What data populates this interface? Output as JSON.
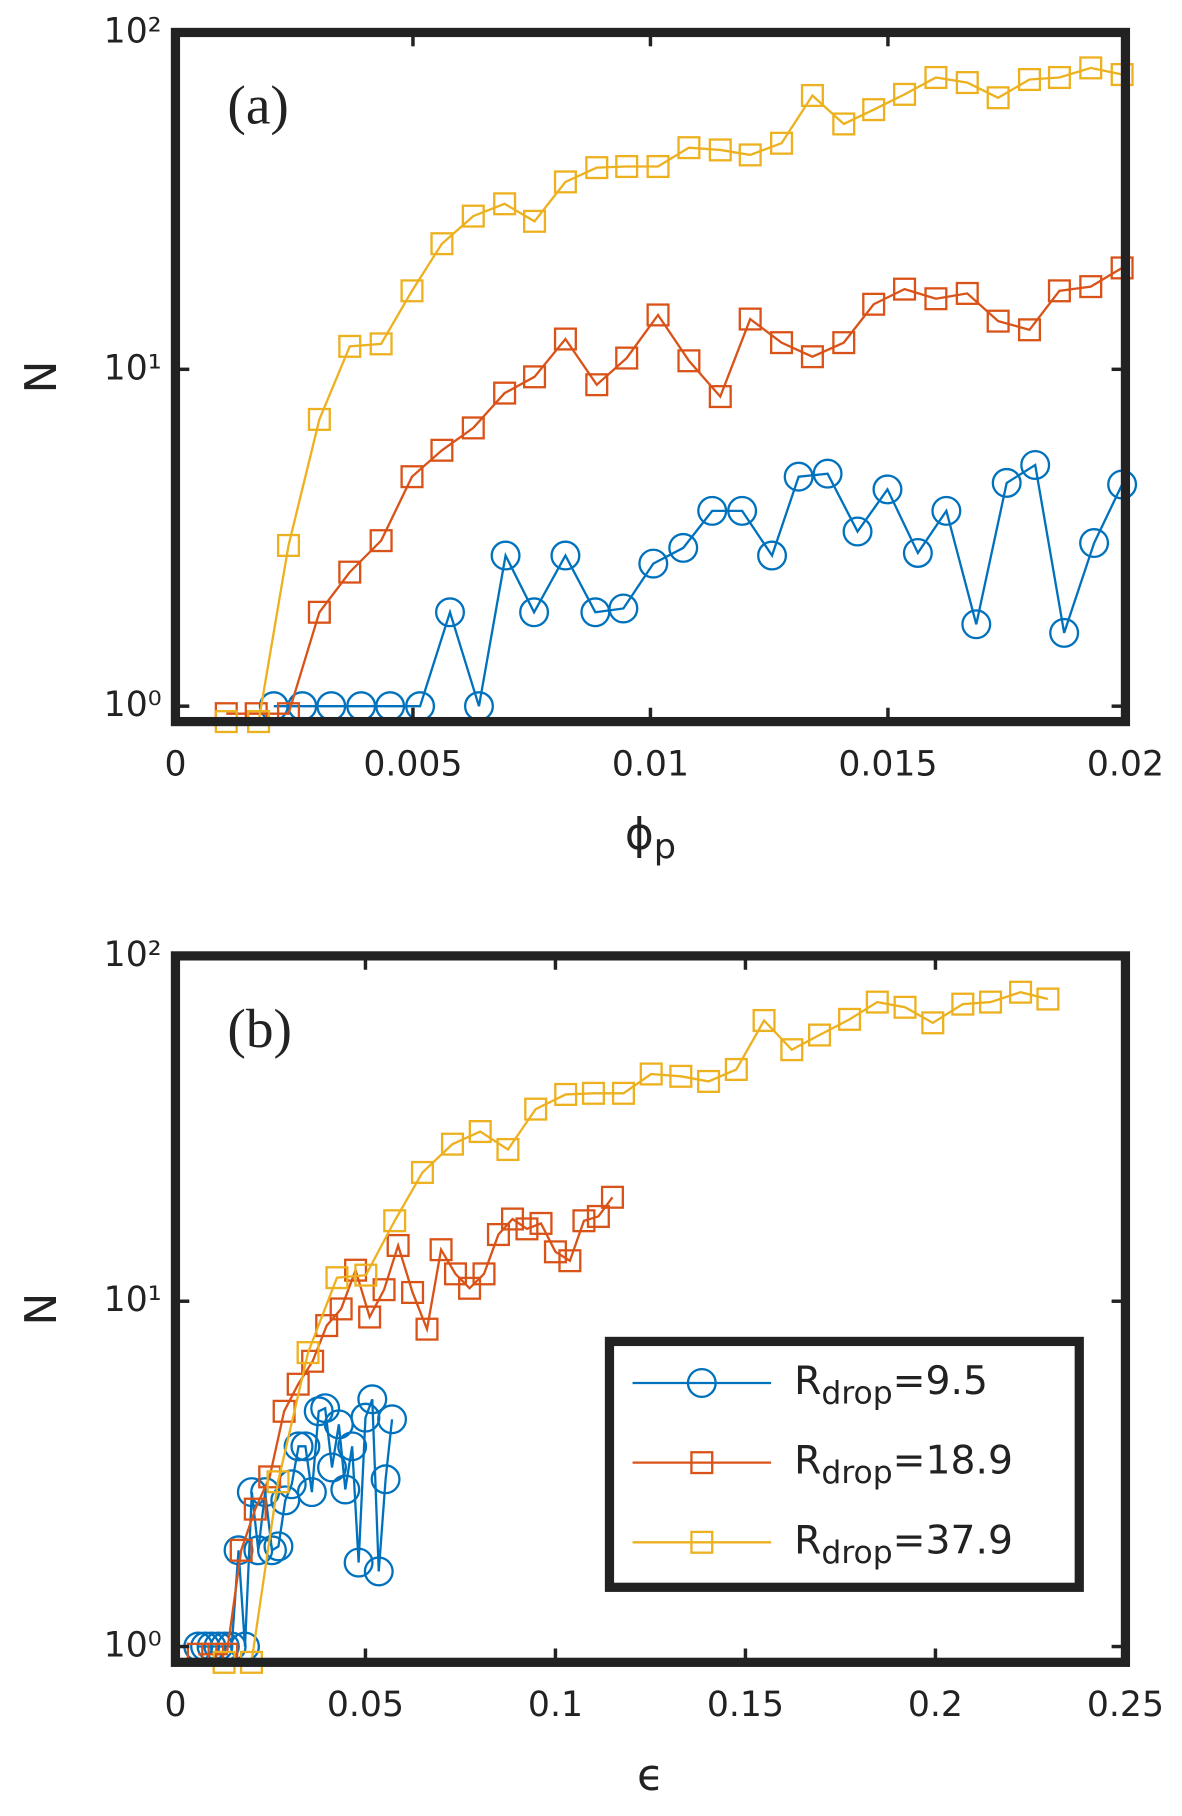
{
  "chart_data": [
    {
      "type": "line",
      "panel_label": "(a)",
      "xlabel": "ϕp",
      "ylabel": "N",
      "log_y": true,
      "xlim": [
        0,
        0.02
      ],
      "xticks": [
        0,
        0.005,
        0.01,
        0.015,
        0.02
      ],
      "ylim": [
        0.9,
        100
      ],
      "yticks": [
        {
          "value": 1,
          "label": "10⁰"
        },
        {
          "value": 10,
          "label": "10¹"
        },
        {
          "value": 100,
          "label": "10²"
        }
      ],
      "series": [
        {
          "color": "#0072BD",
          "marker": "circle",
          "x": [
            0.00207,
            0.00267,
            0.00328,
            0.00391,
            0.00452,
            0.00515,
            0.00578,
            0.00639,
            0.00695,
            0.00755,
            0.00821,
            0.00884,
            0.00943,
            0.01006,
            0.01069,
            0.0113,
            0.01193,
            0.01256,
            0.01312,
            0.01373,
            0.01436,
            0.01499,
            0.01563,
            0.01623,
            0.01686,
            0.0175,
            0.0181,
            0.01871,
            0.01934,
            0.01993
          ],
          "values": [
            1,
            1,
            1,
            1,
            1,
            1,
            1.9,
            1,
            2.8,
            1.9,
            2.8,
            1.9,
            1.95,
            2.65,
            2.95,
            3.8,
            3.8,
            2.8,
            4.8,
            4.9,
            3.3,
            4.4,
            2.85,
            3.8,
            1.75,
            4.6,
            5.2,
            1.65,
            3.05,
            4.55
          ]
        },
        {
          "color": "#D95319",
          "marker": "square",
          "x": [
            0.00107,
            0.0017,
            0.00238,
            0.00303,
            0.00367,
            0.00433,
            0.00498,
            0.00561,
            0.00627,
            0.00693,
            0.00756,
            0.00821,
            0.00887,
            0.0095,
            0.01016,
            0.01081,
            0.01147,
            0.0121,
            0.01276,
            0.01341,
            0.01407,
            0.0147,
            0.01535,
            0.01601,
            0.01667,
            0.01732,
            0.01798,
            0.01861,
            0.01927,
            0.01993
          ],
          "values": [
            0.95,
            0.95,
            0.95,
            1.9,
            2.5,
            3.1,
            4.8,
            5.75,
            6.7,
            8.5,
            9.5,
            12.3,
            9.0,
            10.8,
            14.5,
            10.6,
            8.3,
            14.1,
            12.0,
            10.9,
            12.0,
            15.6,
            17.3,
            16.2,
            16.8,
            13.9,
            13.1,
            17.1,
            17.6,
            20
          ]
        },
        {
          "color": "#EDB120",
          "marker": "square",
          "x": [
            0.00107,
            0.00175,
            0.00238,
            0.00303,
            0.00367,
            0.00433,
            0.00498,
            0.00561,
            0.00627,
            0.00693,
            0.00756,
            0.00821,
            0.00887,
            0.0095,
            0.01016,
            0.01081,
            0.01147,
            0.0121,
            0.01276,
            0.01341,
            0.01407,
            0.0147,
            0.01535,
            0.01601,
            0.01667,
            0.01732,
            0.01798,
            0.01861,
            0.01927,
            0.01993
          ],
          "values": [
            0.9,
            0.9,
            3.0,
            7.1,
            11.7,
            11.9,
            17.1,
            23.6,
            28.5,
            31,
            27.5,
            36,
            39.7,
            40,
            40,
            45.5,
            44.8,
            43.3,
            46.9,
            65,
            53.5,
            59,
            65.5,
            73.5,
            71,
            64,
            72.5,
            73.5,
            78.5,
            75
          ]
        }
      ]
    },
    {
      "type": "line",
      "panel_label": "(b)",
      "xlabel": "ϵ",
      "ylabel": "N",
      "log_y": true,
      "legend": "lower right",
      "xlim": [
        0,
        0.25
      ],
      "xticks": [
        0,
        0.05,
        0.1,
        0.15,
        0.2,
        0.25
      ],
      "ylim": [
        0.9,
        100
      ],
      "yticks": [
        {
          "value": 1,
          "label": "10⁰"
        },
        {
          "value": 10,
          "label": "10¹"
        },
        {
          "value": 100,
          "label": "10²"
        }
      ],
      "series": [
        {
          "name": "Rdrop=9.5",
          "color": "#0072BD",
          "marker": "circle",
          "x": [
            0.006,
            0.0078,
            0.0095,
            0.0113,
            0.013,
            0.0148,
            0.0166,
            0.0183,
            0.0201,
            0.0218,
            0.0236,
            0.0254,
            0.0271,
            0.0289,
            0.0306,
            0.0324,
            0.0342,
            0.0359,
            0.0377,
            0.0394,
            0.0412,
            0.043,
            0.0447,
            0.0465,
            0.0482,
            0.05,
            0.0518,
            0.0535,
            0.0553,
            0.057
          ],
          "values": [
            1,
            1,
            1,
            1,
            1,
            1,
            1.9,
            1,
            2.8,
            1.9,
            2.8,
            1.9,
            1.95,
            2.65,
            2.95,
            3.8,
            3.8,
            2.8,
            4.8,
            4.9,
            3.3,
            4.4,
            2.85,
            3.8,
            1.75,
            4.6,
            5.2,
            1.65,
            3.05,
            4.55
          ]
        },
        {
          "name": "Rdrop=18.9",
          "color": "#D95319",
          "marker": "square",
          "x": [
            0.006,
            0.0098,
            0.0135,
            0.0173,
            0.021,
            0.0248,
            0.0286,
            0.0323,
            0.0361,
            0.0398,
            0.0436,
            0.0474,
            0.0511,
            0.0549,
            0.0586,
            0.0624,
            0.0662,
            0.0699,
            0.0737,
            0.0774,
            0.0812,
            0.085,
            0.0887,
            0.0925,
            0.0962,
            0.1,
            0.1038,
            0.1075,
            0.1113,
            0.115
          ],
          "values": [
            0.95,
            0.95,
            0.95,
            1.9,
            2.5,
            3.1,
            4.8,
            5.75,
            6.7,
            8.5,
            9.5,
            12.3,
            9.0,
            10.8,
            14.5,
            10.6,
            8.3,
            14.1,
            12.0,
            10.9,
            12.0,
            15.6,
            17.3,
            16.2,
            16.8,
            13.9,
            13.1,
            17.1,
            17.6,
            20
          ]
        },
        {
          "name": "Rdrop=37.9",
          "color": "#EDB120",
          "marker": "square",
          "x": [
            0.0128,
            0.02,
            0.027,
            0.0349,
            0.0425,
            0.0501,
            0.0577,
            0.065,
            0.0729,
            0.0802,
            0.0875,
            0.0948,
            0.1027,
            0.11,
            0.1179,
            0.1252,
            0.133,
            0.1403,
            0.1476,
            0.1549,
            0.1622,
            0.1695,
            0.1774,
            0.1847,
            0.192,
            0.1993,
            0.2072,
            0.2145,
            0.2224,
            0.2296
          ],
          "values": [
            0.9,
            0.9,
            3.0,
            7.1,
            11.7,
            11.9,
            17.1,
            23.6,
            28.5,
            31,
            27.5,
            36,
            39.7,
            40,
            40,
            45.5,
            44.8,
            43.3,
            46.9,
            65,
            53.5,
            59,
            65.5,
            73.5,
            71,
            64,
            72.5,
            73.5,
            78.5,
            75
          ]
        }
      ]
    }
  ]
}
